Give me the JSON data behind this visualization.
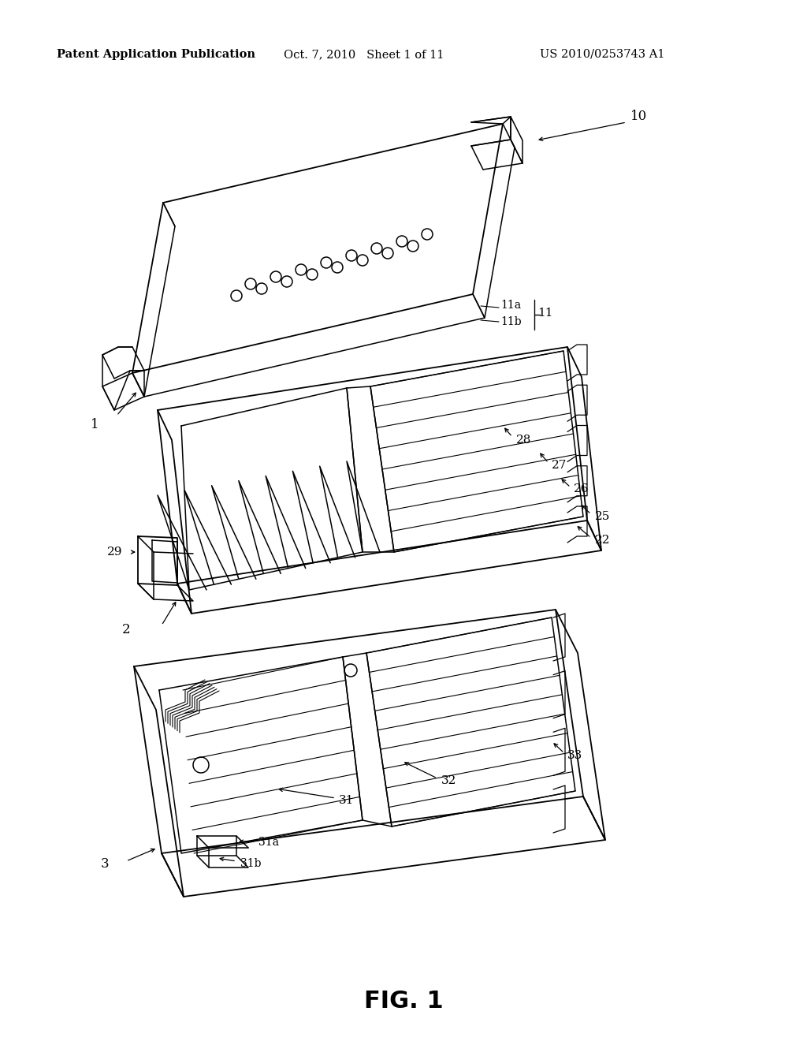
{
  "background_color": "#ffffff",
  "header_left": "Patent Application Publication",
  "header_center": "Oct. 7, 2010   Sheet 1 of 11",
  "header_right": "US 2010/0253743 A1",
  "figure_label": "FIG. 1",
  "header_font_size": 10.5,
  "figure_font_size": 22,
  "label_font_size": 11
}
